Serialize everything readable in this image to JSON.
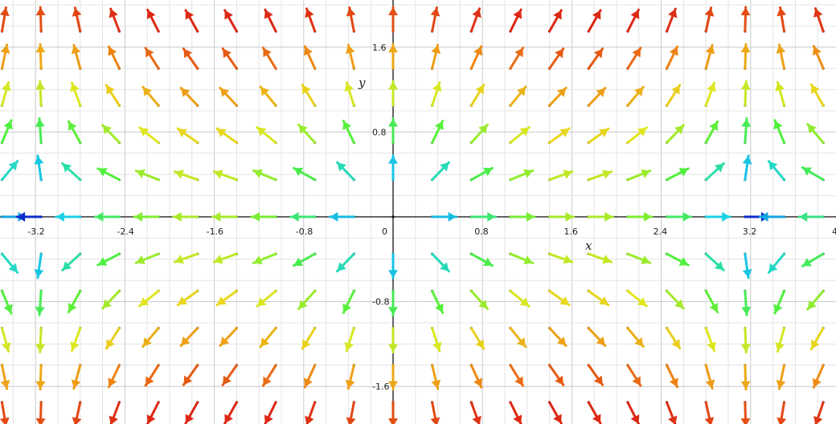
{
  "chart_data": {
    "type": "vector_field",
    "title": "",
    "xlabel": "x",
    "ylabel": "y",
    "xlim": [
      -3.9,
      4.0
    ],
    "ylim": [
      -1.75,
      2.0
    ],
    "grid": true,
    "x_ticks": [
      {
        "value": -3.2,
        "label": "-3.2"
      },
      {
        "value": -2.4,
        "label": "-2.4"
      },
      {
        "value": -1.6,
        "label": "-1.6"
      },
      {
        "value": -0.8,
        "label": "-0.8"
      },
      {
        "value": 0,
        "label": "0"
      },
      {
        "value": 0.8,
        "label": "0.8"
      },
      {
        "value": 1.6,
        "label": "1.6"
      },
      {
        "value": 2.4,
        "label": "2.4"
      },
      {
        "value": 3.2,
        "label": "3.2"
      },
      {
        "value": 4,
        "label": "4"
      }
    ],
    "y_ticks": [
      {
        "value": 1.6,
        "label": "1.6"
      },
      {
        "value": 0.8,
        "label": "0.8"
      },
      {
        "value": -0.8,
        "label": "-0.8"
      },
      {
        "value": -1.6,
        "label": "-1.6"
      }
    ],
    "field_spacing": 0.35,
    "field_description": "direction of arrows ~ (sin(pi*x/3.2), y); color by magnitude (blue low, red high)",
    "colormap": [
      "#0a14c8",
      "#19d2e6",
      "#50f03c",
      "#e6e61e",
      "#f08c14",
      "#dc2814"
    ]
  }
}
